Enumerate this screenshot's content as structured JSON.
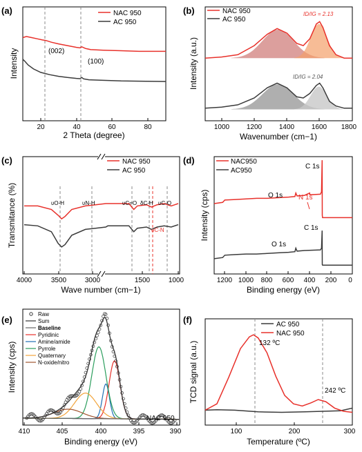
{
  "colors": {
    "nac": "#e8302a",
    "ac": "#3a3a3a"
  },
  "chart_data": [
    {
      "panel": "(a)",
      "type": "line",
      "xlabel": "2 Theta (degree)",
      "ylabel": "Intensity",
      "xlim": [
        10,
        90
      ],
      "xticks": [
        "20",
        "40",
        "60",
        "80"
      ],
      "legend": [
        "NAC 950",
        "AC 950"
      ],
      "annotations": [
        "(002)",
        "(100)"
      ],
      "dashed_x": [
        23,
        43
      ],
      "series": [
        {
          "name": "NAC 950",
          "x": [
            10,
            12,
            15,
            18,
            21,
            23,
            26,
            30,
            35,
            40,
            42,
            43,
            45,
            48,
            55,
            65,
            75,
            90
          ],
          "y": [
            0.73,
            0.74,
            0.73,
            0.72,
            0.71,
            0.705,
            0.69,
            0.675,
            0.66,
            0.645,
            0.64,
            0.65,
            0.635,
            0.625,
            0.62,
            0.615,
            0.61,
            0.61
          ]
        },
        {
          "name": "AC 950",
          "x": [
            10,
            11,
            13,
            16,
            20,
            25,
            30,
            35,
            40,
            42,
            43,
            44,
            47,
            55,
            65,
            75,
            90
          ],
          "y": [
            0.54,
            0.525,
            0.49,
            0.455,
            0.425,
            0.405,
            0.39,
            0.38,
            0.372,
            0.37,
            0.38,
            0.368,
            0.36,
            0.355,
            0.35,
            0.348,
            0.345
          ]
        }
      ]
    },
    {
      "panel": "(b)",
      "type": "line",
      "xlabel": "Wavenumber (cm−1)",
      "ylabel": "Intensity (a.u.)",
      "xlim": [
        900,
        1800
      ],
      "xticks": [
        "1000",
        "1200",
        "1400",
        "1600",
        "1800"
      ],
      "legend": [
        "NAC 950",
        "AC 950"
      ],
      "annotations": [
        "ID/IG = 2.13",
        "ID/IG = 2.04"
      ],
      "series": [
        {
          "name": "NAC 950",
          "x": [
            900,
            1000,
            1100,
            1200,
            1280,
            1340,
            1400,
            1460,
            1500,
            1540,
            1580,
            1600,
            1620,
            1660,
            1700,
            1750,
            1800
          ],
          "y": [
            0.55,
            0.56,
            0.58,
            0.66,
            0.76,
            0.81,
            0.77,
            0.68,
            0.66,
            0.72,
            0.85,
            0.87,
            0.82,
            0.66,
            0.58,
            0.55,
            0.55
          ]
        },
        {
          "name": "AC 950",
          "x": [
            900,
            1000,
            1100,
            1200,
            1280,
            1340,
            1400,
            1460,
            1500,
            1540,
            1580,
            1600,
            1620,
            1660,
            1700,
            1750,
            1800
          ],
          "y": [
            0.11,
            0.12,
            0.14,
            0.2,
            0.29,
            0.33,
            0.29,
            0.21,
            0.2,
            0.24,
            0.31,
            0.33,
            0.29,
            0.17,
            0.13,
            0.11,
            0.11
          ]
        }
      ]
    },
    {
      "panel": "(c)",
      "type": "line",
      "xlabel": "Wave number (cm−1)",
      "ylabel": "Transmitance (%)",
      "xticks": [
        "4000",
        "3500",
        "3000",
        "1500",
        "1000"
      ],
      "legend": [
        "NAC 950",
        "AC 950"
      ],
      "annotations": [
        "υO-H",
        "υN-H",
        "υC=O",
        "δC-H",
        "υC-O",
        "υC-N"
      ],
      "series": [
        {
          "name": "NAC 950",
          "x": [
            4000,
            3800,
            3600,
            3500,
            3450,
            3400,
            3300,
            3100,
            2950,
            2800,
            2000,
            1700,
            1630,
            1580,
            1450,
            1380,
            1300,
            1200,
            1100,
            1000
          ],
          "y": [
            0.58,
            0.58,
            0.55,
            0.5,
            0.47,
            0.49,
            0.55,
            0.58,
            0.59,
            0.6,
            0.6,
            0.6,
            0.55,
            0.58,
            0.59,
            0.57,
            0.59,
            0.6,
            0.58,
            0.6
          ]
        },
        {
          "name": "AC 950",
          "x": [
            4000,
            3800,
            3600,
            3500,
            3450,
            3400,
            3300,
            3100,
            2950,
            2800,
            2000,
            1700,
            1630,
            1580,
            1450,
            1380,
            1300,
            1200,
            1100,
            1000
          ],
          "y": [
            0.42,
            0.41,
            0.36,
            0.26,
            0.23,
            0.25,
            0.33,
            0.38,
            0.39,
            0.4,
            0.41,
            0.41,
            0.36,
            0.39,
            0.4,
            0.38,
            0.4,
            0.41,
            0.4,
            0.42
          ]
        }
      ]
    },
    {
      "panel": "(d)",
      "type": "line",
      "xlabel": "Binding energy (eV)",
      "ylabel": "Intensity (cps)",
      "xlim": [
        1300,
        0
      ],
      "xticks": [
        "1200",
        "1000",
        "800",
        "600",
        "400",
        "200",
        "0"
      ],
      "legend": [
        "NAC950",
        "AC950"
      ],
      "annotations": [
        "C 1s",
        "O 1s",
        "N 1s",
        "C 1s",
        "O 1s"
      ],
      "series": [
        {
          "name": "NAC950",
          "x": [
            1300,
            1220,
            1200,
            1100,
            1000,
            900,
            800,
            700,
            600,
            540,
            532,
            520,
            450,
            402,
            400,
            300,
            290,
            284,
            283,
            280,
            200,
            100,
            0
          ],
          "y": [
            0.6,
            0.61,
            0.63,
            0.635,
            0.64,
            0.645,
            0.645,
            0.65,
            0.655,
            0.66,
            0.69,
            0.665,
            0.67,
            0.69,
            0.675,
            0.68,
            0.7,
            0.97,
            0.5,
            0.48,
            0.48,
            0.48,
            0.48
          ]
        },
        {
          "name": "AC950",
          "x": [
            1300,
            1220,
            1200,
            1100,
            1000,
            900,
            800,
            700,
            600,
            540,
            532,
            520,
            450,
            300,
            290,
            284,
            283,
            280,
            200,
            100,
            0
          ],
          "y": [
            0.13,
            0.14,
            0.16,
            0.165,
            0.17,
            0.17,
            0.175,
            0.18,
            0.185,
            0.19,
            0.22,
            0.195,
            0.2,
            0.205,
            0.22,
            0.37,
            0.08,
            0.075,
            0.075,
            0.075,
            0.075
          ]
        }
      ]
    },
    {
      "panel": "(e)",
      "type": "scatter",
      "xlabel": "Binding energy (eV)",
      "ylabel": "Intensity (cps)",
      "xlim": [
        410,
        390
      ],
      "xticks": [
        "410",
        "405",
        "400",
        "395",
        "390"
      ],
      "legend": [
        "Raw",
        "Sum",
        "Baseline",
        "Pyridinic",
        "Amine/amide",
        "Pyrrole",
        "Quaternary",
        "N-oxide/nitro"
      ],
      "annotations": [
        "NAC 950"
      ],
      "peaks": [
        {
          "name": "Pyridinic",
          "center": 398.3,
          "height": 0.5,
          "width": 0.7,
          "color": "#e8302a"
        },
        {
          "name": "Amine/amide",
          "center": 399.4,
          "height": 0.3,
          "width": 0.45,
          "color": "#1f6fb5"
        },
        {
          "name": "Pyrrole",
          "center": 400.3,
          "height": 0.62,
          "width": 0.9,
          "color": "#2a9d5c"
        },
        {
          "name": "Quaternary",
          "center": 402.0,
          "height": 0.22,
          "width": 1.4,
          "color": "#f2a43a"
        },
        {
          "name": "N-oxide/nitro",
          "center": 404.2,
          "height": 0.08,
          "width": 1.8,
          "color": "#a0522d"
        }
      ],
      "baseline": [
        0.06,
        0.05
      ]
    },
    {
      "panel": "(f)",
      "type": "line",
      "xlabel": "Temperature (ºC)",
      "ylabel": "TCD signal (a.u.)",
      "xlim": [
        50,
        300
      ],
      "xticks": [
        "100",
        "200",
        "300"
      ],
      "legend": [
        "AC 950",
        "NAC 950"
      ],
      "annotations": [
        "132 ºC",
        "242 ºC"
      ],
      "dashed_x": [
        132,
        242
      ],
      "series": [
        {
          "name": "AC 950",
          "x": [
            50,
            70,
            100,
            140,
            180,
            220,
            250,
            280,
            300
          ],
          "y": [
            0.14,
            0.145,
            0.14,
            0.125,
            0.12,
            0.125,
            0.13,
            0.135,
            0.16
          ]
        },
        {
          "name": "NAC 950",
          "x": [
            50,
            70,
            90,
            110,
            125,
            132,
            140,
            155,
            170,
            185,
            200,
            215,
            230,
            242,
            255,
            270,
            285,
            300
          ],
          "y": [
            0.14,
            0.2,
            0.45,
            0.72,
            0.83,
            0.85,
            0.82,
            0.68,
            0.46,
            0.28,
            0.2,
            0.18,
            0.21,
            0.24,
            0.22,
            0.16,
            0.13,
            0.12
          ]
        }
      ]
    }
  ]
}
